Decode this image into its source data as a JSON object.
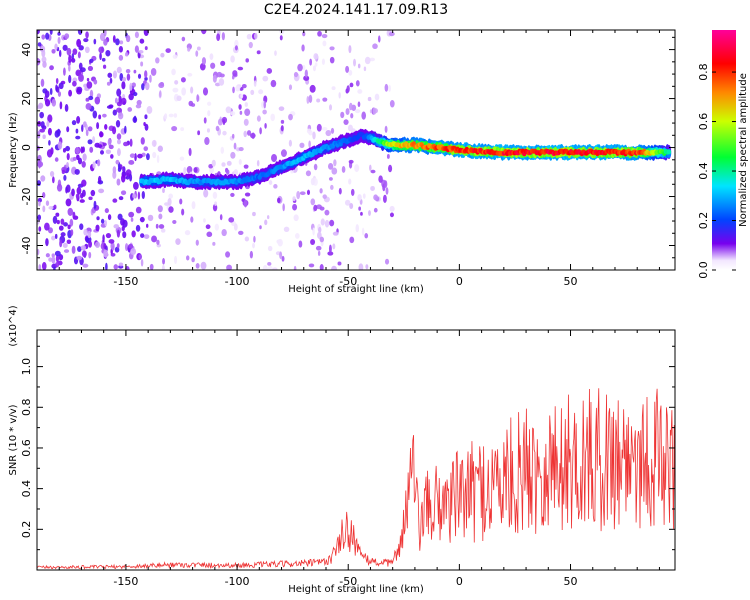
{
  "title": "C2E4.2024.141.17.09.R13",
  "colors": {
    "snr_line": "#ee3333",
    "colormap": [
      "#ffffff",
      "#7700ee",
      "#0044ff",
      "#00e5ff",
      "#00ff33",
      "#ccff00",
      "#ff8800",
      "#ff0000",
      "#ff0099"
    ]
  },
  "chart_data": [
    {
      "type": "heatmap",
      "title": "C2E4.2024.141.17.09.R13",
      "xlabel": "Height of straight line (km)",
      "ylabel": "Frequency (Hz)",
      "xlim": [
        -190,
        97
      ],
      "ylim": [
        -50,
        48
      ],
      "x_ticks": [
        -150,
        -100,
        -50,
        0,
        50
      ],
      "y_ticks": [
        -40,
        -20,
        0,
        20,
        40
      ],
      "grid": false,
      "colorbar": {
        "label": "Normalized spectral amplitude",
        "range": [
          0.0,
          0.97
        ],
        "ticks": [
          0.0,
          0.2,
          0.4,
          0.6,
          0.8
        ],
        "tick_labels": [
          "0.0",
          "0.2",
          "0.4",
          "0.6",
          "0.8"
        ]
      },
      "ridge": {
        "x": [
          -143,
          -130,
          -120,
          -110,
          -100,
          -90,
          -80,
          -70,
          -60,
          -50,
          -44,
          -40,
          -35,
          -30,
          -20,
          -10,
          0,
          20,
          50,
          80,
          95
        ],
        "frequency": [
          -14,
          -13,
          -14,
          -14,
          -14,
          -12,
          -8,
          -4,
          0,
          3,
          5,
          4,
          2,
          1,
          1,
          0,
          -1,
          -2,
          -2,
          -2,
          -2
        ],
        "amplitude": [
          0.35,
          0.35,
          0.3,
          0.3,
          0.3,
          0.25,
          0.3,
          0.35,
          0.3,
          0.25,
          0.2,
          0.3,
          0.5,
          0.7,
          0.8,
          0.85,
          0.9,
          0.92,
          0.95,
          0.9,
          0.4
        ]
      },
      "background_noise": {
        "x_extent": [
          -190,
          -30
        ],
        "dense_until": -140,
        "level": 0.15
      }
    },
    {
      "type": "line",
      "xlabel": "Height of straight line (km)",
      "ylabel": "SNR (10 * v/v)",
      "y_multiplier": "(x10^4)",
      "xlim": [
        -190,
        97
      ],
      "ylim": [
        0,
        11800
      ],
      "x_ticks": [
        -150,
        -100,
        -50,
        0,
        50
      ],
      "y_ticks": [
        2000,
        4000,
        6000,
        8000,
        10000
      ],
      "y_tick_labels": [
        "0.2",
        "0.4",
        "0.6",
        "0.8",
        "1.0"
      ],
      "grid": false,
      "series": [
        {
          "color": "#ee3333",
          "envelope_x": [
            -190,
            -150,
            -130,
            -100,
            -80,
            -70,
            -60,
            -55,
            -52,
            -48,
            -44,
            -38,
            -30,
            -26,
            -23,
            -21,
            -20,
            -18,
            -15,
            -10,
            0,
            10,
            20,
            30,
            40,
            50,
            60,
            70,
            80,
            90,
            95
          ],
          "envelope_y": [
            200,
            250,
            400,
            350,
            450,
            500,
            600,
            1500,
            3000,
            2800,
            900,
            600,
            500,
            2500,
            5000,
            7000,
            4500,
            3000,
            4000,
            4500,
            5000,
            5500,
            6000,
            6800,
            7000,
            7300,
            7500,
            7600,
            7800,
            7500,
            7000
          ]
        }
      ]
    }
  ]
}
